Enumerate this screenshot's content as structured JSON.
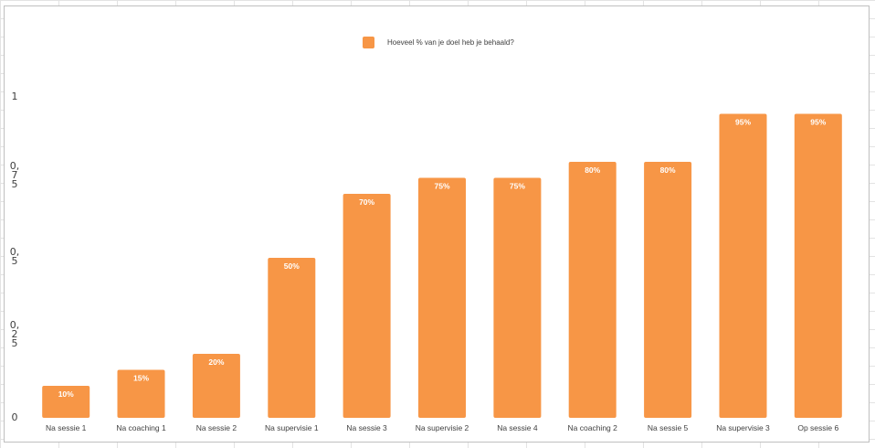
{
  "chart_data": {
    "type": "bar",
    "title": "",
    "xlabel": "",
    "ylabel": "",
    "categories": [
      "Na sessie 1",
      "Na coaching 1",
      "Na sessie 2",
      "Na supervisie 1",
      "Na sessie 3",
      "Na supervisie 2",
      "Na sessie 4",
      "Na coaching 2",
      "Na sessie 5",
      "Na supervisie 3",
      "Op sessie 6"
    ],
    "series": [
      {
        "name": "Hoeveel % van je doel heb je behaald?",
        "values": [
          0.1,
          0.15,
          0.2,
          0.5,
          0.7,
          0.75,
          0.75,
          0.8,
          0.8,
          0.95,
          0.95
        ],
        "data_labels": [
          "10%",
          "15%",
          "20%",
          "50%",
          "70%",
          "75%",
          "75%",
          "80%",
          "80%",
          "95%",
          "95%"
        ]
      }
    ],
    "ylim": [
      0,
      1
    ],
    "yticks": [
      {
        "value": 0,
        "label": "0"
      },
      {
        "value": 0.25,
        "label": "0,\n2\n5"
      },
      {
        "value": 0.5,
        "label": "0,\n5"
      },
      {
        "value": 0.75,
        "label": "0,\n7\n5"
      },
      {
        "value": 1,
        "label": "1"
      }
    ],
    "grid": false,
    "legend_position": "top",
    "colors": {
      "bar": "#f79646",
      "data_label": "#ffffff",
      "axis_text": "#404040"
    }
  }
}
